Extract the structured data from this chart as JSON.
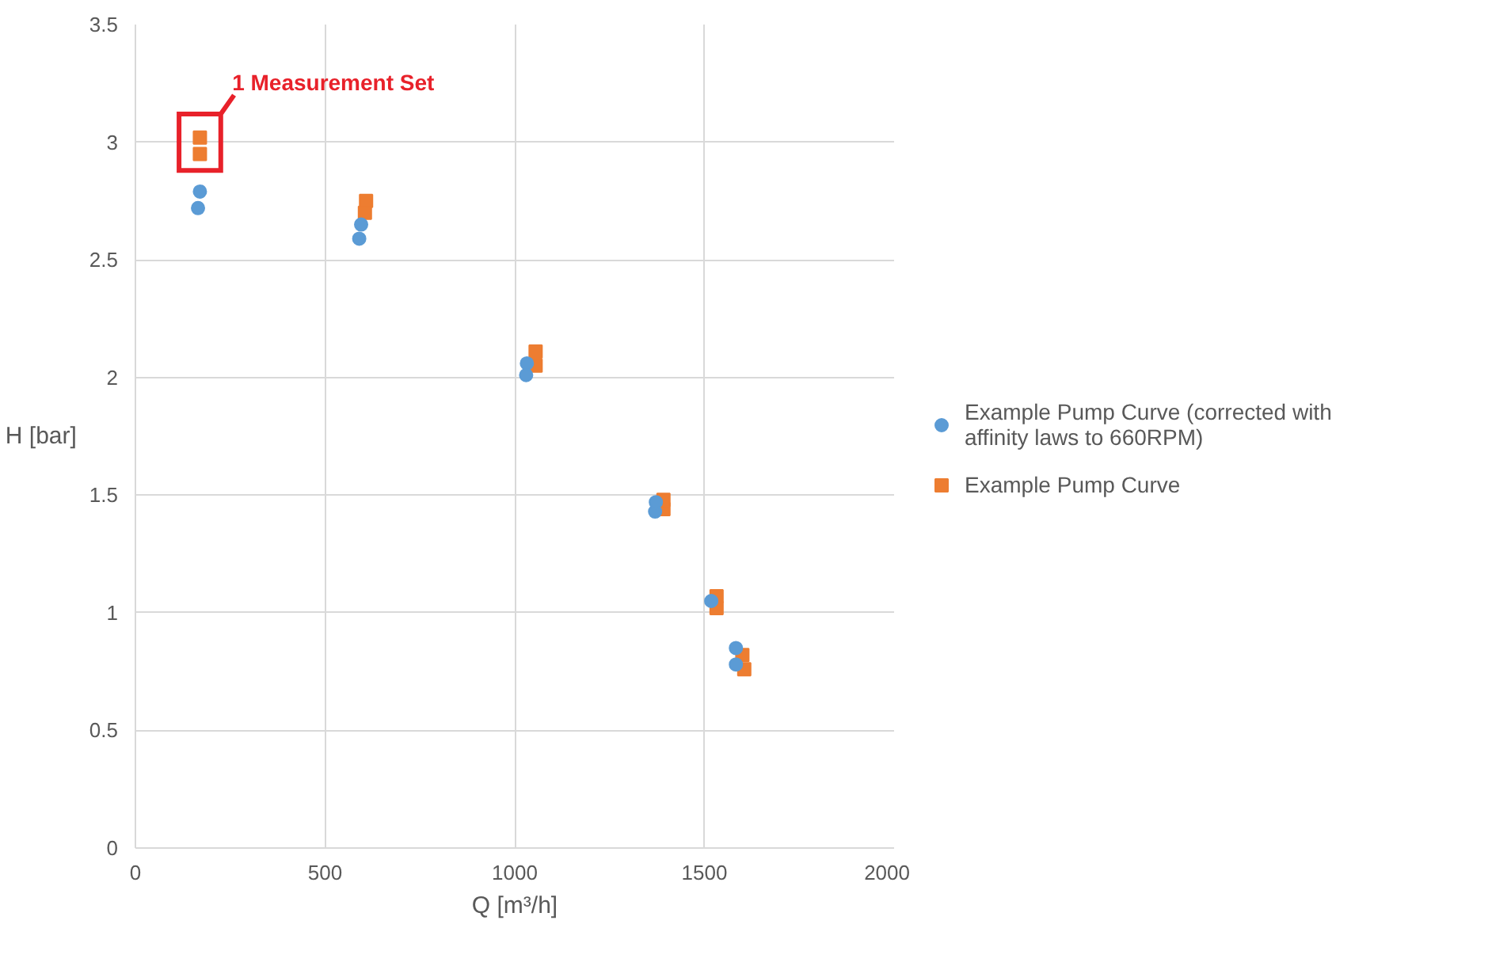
{
  "chart_data": {
    "type": "scatter",
    "xlabel": "Q [m³/h]",
    "ylabel": "H [bar]",
    "xlim": [
      0,
      2000
    ],
    "xticks": [
      0,
      500,
      1000,
      1500,
      2000
    ],
    "ylim": [
      0,
      3.5
    ],
    "yticks": [
      0,
      0.5,
      1,
      1.5,
      2,
      2.5,
      3,
      3.5
    ],
    "grid": true,
    "legend": "right",
    "annotations": [
      {
        "text": "1 Measurement Set",
        "x": 170,
        "y": 3.0
      }
    ],
    "series": [
      {
        "name": "Example Pump Curve (corrected with affinity laws to 660RPM)",
        "color": "#5b9bd5",
        "marker": "circle",
        "x": [
          165,
          170,
          590,
          595,
          1030,
          1032,
          1370,
          1372,
          1518,
          1583,
          1583
        ],
        "values": [
          2.72,
          2.79,
          2.59,
          2.65,
          2.01,
          2.06,
          1.43,
          1.47,
          1.05,
          0.85,
          0.78
        ]
      },
      {
        "name": "Example Pump Curve",
        "color": "#ed7d31",
        "marker": "square",
        "x": [
          170,
          170,
          605,
          608,
          1055,
          1055,
          1392,
          1392,
          1532,
          1532,
          1600,
          1605
        ],
        "values": [
          2.95,
          3.02,
          2.7,
          2.75,
          2.05,
          2.11,
          1.44,
          1.48,
          1.02,
          1.07,
          0.82,
          0.76
        ]
      }
    ]
  }
}
